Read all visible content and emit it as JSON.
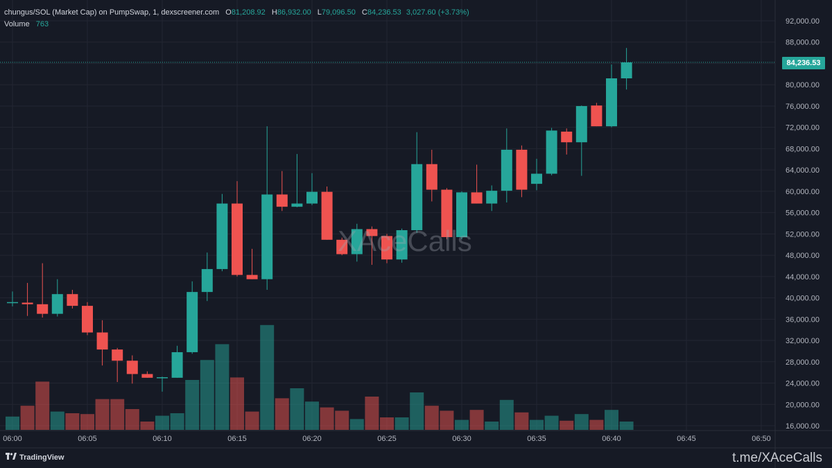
{
  "header": {
    "symbol": "chungus/SOL (Market Cap) on PumpSwap, 1, dexscreener.com",
    "open_label": "O",
    "open": "81,208.92",
    "high_label": "H",
    "high": "86,932.00",
    "low_label": "L",
    "low": "79,096.50",
    "close_label": "C",
    "close": "84,236.53",
    "change": "3,027.60 (+3.73%)",
    "volume_label": "Volume",
    "volume": "763"
  },
  "current_price": "84,236.53",
  "watermark": "XAceCalls",
  "branding": {
    "tradingview": "TradingView",
    "channel": "t.me/XAceCalls"
  },
  "colors": {
    "up": "#26a69a",
    "down": "#ef5350",
    "background": "#161a25"
  },
  "chart_data": {
    "type": "candlestick",
    "interval": "1",
    "ylim": [
      14000,
      94000
    ],
    "y_ticks": [
      "92,000.00",
      "88,000.00",
      "84,000.00",
      "80,000.00",
      "76,000.00",
      "72,000.00",
      "68,000.00",
      "64,000.00",
      "60,000.00",
      "56,000.00",
      "52,000.00",
      "48,000.00",
      "44,000.00",
      "40,000.00",
      "36,000.00",
      "32,000.00",
      "28,000.00",
      "24,000.00",
      "20,000.00",
      "16,000.00"
    ],
    "x_ticks": [
      "06:00",
      "06:05",
      "06:10",
      "06:15",
      "06:20",
      "06:25",
      "06:30",
      "06:35",
      "06:40",
      "06:45",
      "06:50"
    ],
    "candles": [
      {
        "t": "06:00",
        "o": 39200,
        "h": 41200,
        "l": 38400,
        "c": 39200
      },
      {
        "t": "06:01",
        "o": 39100,
        "h": 42800,
        "l": 36600,
        "c": 38800
      },
      {
        "t": "06:02",
        "o": 38800,
        "h": 46500,
        "l": 36300,
        "c": 37000
      },
      {
        "t": "06:03",
        "o": 37000,
        "h": 43500,
        "l": 36500,
        "c": 40700
      },
      {
        "t": "06:04",
        "o": 40700,
        "h": 41500,
        "l": 38000,
        "c": 38500
      },
      {
        "t": "06:05",
        "o": 38500,
        "h": 39200,
        "l": 33000,
        "c": 33500
      },
      {
        "t": "06:06",
        "o": 33500,
        "h": 35800,
        "l": 27300,
        "c": 30300
      },
      {
        "t": "06:07",
        "o": 30300,
        "h": 30600,
        "l": 24200,
        "c": 28200
      },
      {
        "t": "06:08",
        "o": 28200,
        "h": 29200,
        "l": 23900,
        "c": 25700
      },
      {
        "t": "06:09",
        "o": 25700,
        "h": 26200,
        "l": 25000,
        "c": 25000
      },
      {
        "t": "06:10",
        "o": 25100,
        "h": 25200,
        "l": 22400,
        "c": 25100
      },
      {
        "t": "06:11",
        "o": 25000,
        "h": 31000,
        "l": 25000,
        "c": 29800
      },
      {
        "t": "06:12",
        "o": 29800,
        "h": 43100,
        "l": 29500,
        "c": 41100
      },
      {
        "t": "06:13",
        "o": 41100,
        "h": 48500,
        "l": 39400,
        "c": 45400
      },
      {
        "t": "06:14",
        "o": 45400,
        "h": 59500,
        "l": 45000,
        "c": 57700
      },
      {
        "t": "06:15",
        "o": 57700,
        "h": 61900,
        "l": 44000,
        "c": 44300
      },
      {
        "t": "06:16",
        "o": 44300,
        "h": 49200,
        "l": 43500,
        "c": 43500
      },
      {
        "t": "06:17",
        "o": 43500,
        "h": 72200,
        "l": 41500,
        "c": 59400
      },
      {
        "t": "06:18",
        "o": 59400,
        "h": 63800,
        "l": 56300,
        "c": 57100
      },
      {
        "t": "06:19",
        "o": 57100,
        "h": 67000,
        "l": 57000,
        "c": 57700
      },
      {
        "t": "06:20",
        "o": 57700,
        "h": 63400,
        "l": 57400,
        "c": 59900
      },
      {
        "t": "06:21",
        "o": 59900,
        "h": 60900,
        "l": 50900,
        "c": 50900
      },
      {
        "t": "06:22",
        "o": 50900,
        "h": 51300,
        "l": 48000,
        "c": 48200
      },
      {
        "t": "06:23",
        "o": 48200,
        "h": 53900,
        "l": 46800,
        "c": 52900
      },
      {
        "t": "06:24",
        "o": 52900,
        "h": 53400,
        "l": 46200,
        "c": 51600
      },
      {
        "t": "06:25",
        "o": 51600,
        "h": 52000,
        "l": 46500,
        "c": 47200
      },
      {
        "t": "06:26",
        "o": 47200,
        "h": 53000,
        "l": 46600,
        "c": 52700
      },
      {
        "t": "06:27",
        "o": 52700,
        "h": 71100,
        "l": 52200,
        "c": 65100
      },
      {
        "t": "06:28",
        "o": 65100,
        "h": 67800,
        "l": 58100,
        "c": 60300
      },
      {
        "t": "06:29",
        "o": 60300,
        "h": 60600,
        "l": 51000,
        "c": 51400
      },
      {
        "t": "06:30",
        "o": 51400,
        "h": 60000,
        "l": 51000,
        "c": 59800
      },
      {
        "t": "06:31",
        "o": 59800,
        "h": 65000,
        "l": 57700,
        "c": 57700
      },
      {
        "t": "06:32",
        "o": 57700,
        "h": 61100,
        "l": 56300,
        "c": 60100
      },
      {
        "t": "06:33",
        "o": 60100,
        "h": 71800,
        "l": 57900,
        "c": 67800
      },
      {
        "t": "06:34",
        "o": 67800,
        "h": 68600,
        "l": 58900,
        "c": 60300
      },
      {
        "t": "06:35",
        "o": 61400,
        "h": 66100,
        "l": 60200,
        "c": 63300
      },
      {
        "t": "06:36",
        "o": 63300,
        "h": 71900,
        "l": 63000,
        "c": 71400
      },
      {
        "t": "06:37",
        "o": 71200,
        "h": 71800,
        "l": 66900,
        "c": 69200
      },
      {
        "t": "06:38",
        "o": 69200,
        "h": 76100,
        "l": 62900,
        "c": 76000
      },
      {
        "t": "06:39",
        "o": 76100,
        "h": 76600,
        "l": 72200,
        "c": 72200
      },
      {
        "t": "06:40",
        "o": 72200,
        "h": 83800,
        "l": 72000,
        "c": 81200
      },
      {
        "t": "06:41",
        "o": 81200,
        "h": 86900,
        "l": 79100,
        "c": 84200
      }
    ],
    "volume_note": "per-candle volume, relative units",
    "volumes": [
      1.6,
      2.9,
      5.8,
      2.2,
      2.0,
      1.9,
      3.7,
      3.7,
      2.5,
      1.0,
      1.7,
      2.0,
      6.0,
      8.4,
      10.3,
      6.3,
      2.2,
      12.6,
      3.8,
      5.0,
      3.4,
      2.7,
      2.3,
      1.3,
      4.0,
      1.5,
      1.5,
      4.5,
      2.9,
      2.3,
      1.2,
      2.4,
      1.0,
      3.6,
      2.1,
      1.2,
      1.7,
      1.1,
      1.9,
      1.2,
      2.4,
      1.0
    ]
  }
}
